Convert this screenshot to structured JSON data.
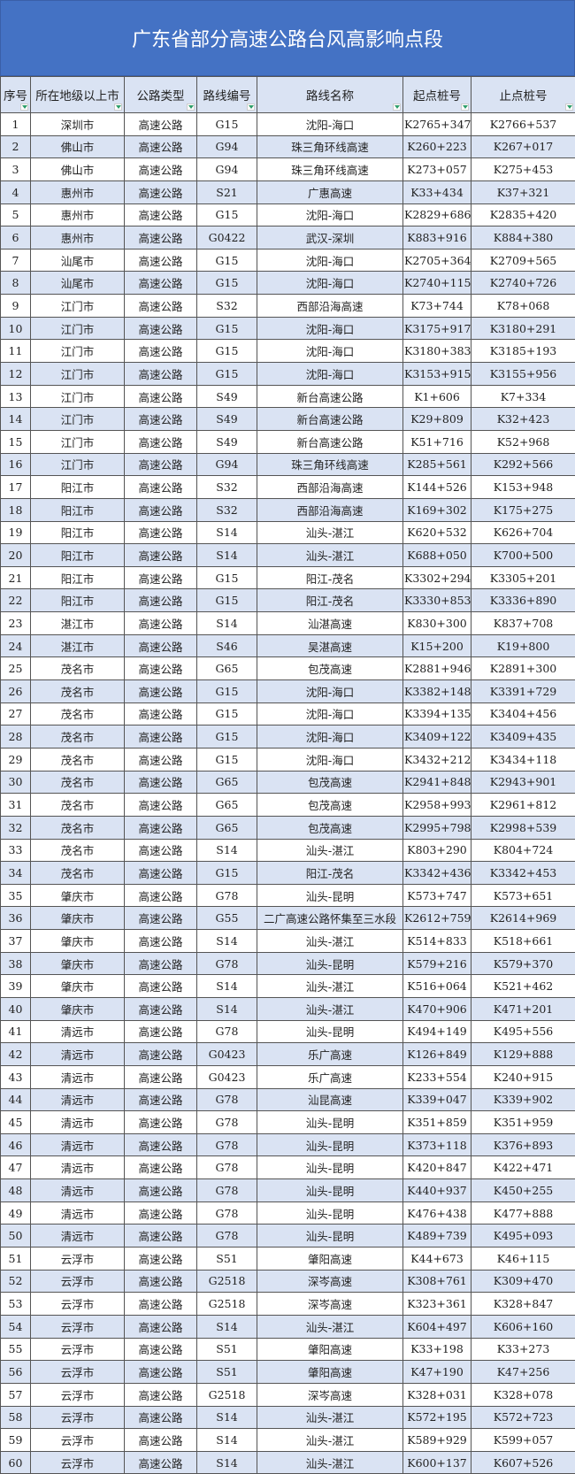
{
  "title": "广东省部分高速公路台风高影响点段",
  "headers": [
    "序号",
    "所在地级以上市",
    "公路类型",
    "路线编号",
    "路线名称",
    "起点桩号",
    "止点桩号"
  ],
  "rows": [
    [
      "1",
      "深圳市",
      "高速公路",
      "G15",
      "沈阳-海口",
      "K2765+347",
      "K2766+537"
    ],
    [
      "2",
      "佛山市",
      "高速公路",
      "G94",
      "珠三角环线高速",
      "K260+223",
      "K267+017"
    ],
    [
      "3",
      "佛山市",
      "高速公路",
      "G94",
      "珠三角环线高速",
      "K273+057",
      "K275+453"
    ],
    [
      "4",
      "惠州市",
      "高速公路",
      "S21",
      "广惠高速",
      "K33+434",
      "K37+321"
    ],
    [
      "5",
      "惠州市",
      "高速公路",
      "G15",
      "沈阳-海口",
      "K2829+686",
      "K2835+420"
    ],
    [
      "6",
      "惠州市",
      "高速公路",
      "G0422",
      "武汉-深圳",
      "K883+916",
      "K884+380"
    ],
    [
      "7",
      "汕尾市",
      "高速公路",
      "G15",
      "沈阳-海口",
      "K2705+364",
      "K2709+565"
    ],
    [
      "8",
      "汕尾市",
      "高速公路",
      "G15",
      "沈阳-海口",
      "K2740+115",
      "K2740+726"
    ],
    [
      "9",
      "江门市",
      "高速公路",
      "S32",
      "西部沿海高速",
      "K73+744",
      "K78+068"
    ],
    [
      "10",
      "江门市",
      "高速公路",
      "G15",
      "沈阳-海口",
      "K3175+917",
      "K3180+291"
    ],
    [
      "11",
      "江门市",
      "高速公路",
      "G15",
      "沈阳-海口",
      "K3180+383",
      "K3185+193"
    ],
    [
      "12",
      "江门市",
      "高速公路",
      "G15",
      "沈阳-海口",
      "K3153+915",
      "K3155+956"
    ],
    [
      "13",
      "江门市",
      "高速公路",
      "S49",
      "新台高速公路",
      "K1+606",
      "K7+334"
    ],
    [
      "14",
      "江门市",
      "高速公路",
      "S49",
      "新台高速公路",
      "K29+809",
      "K32+423"
    ],
    [
      "15",
      "江门市",
      "高速公路",
      "S49",
      "新台高速公路",
      "K51+716",
      "K52+968"
    ],
    [
      "16",
      "江门市",
      "高速公路",
      "G94",
      "珠三角环线高速",
      "K285+561",
      "K292+566"
    ],
    [
      "17",
      "阳江市",
      "高速公路",
      "S32",
      "西部沿海高速",
      "K144+526",
      "K153+948"
    ],
    [
      "18",
      "阳江市",
      "高速公路",
      "S32",
      "西部沿海高速",
      "K169+302",
      "K175+275"
    ],
    [
      "19",
      "阳江市",
      "高速公路",
      "S14",
      "汕头-湛江",
      "K620+532",
      "K626+704"
    ],
    [
      "20",
      "阳江市",
      "高速公路",
      "S14",
      "汕头-湛江",
      "K688+050",
      "K700+500"
    ],
    [
      "21",
      "阳江市",
      "高速公路",
      "G15",
      "阳江-茂名",
      "K3302+294",
      "K3305+201"
    ],
    [
      "22",
      "阳江市",
      "高速公路",
      "G15",
      "阳江-茂名",
      "K3330+853",
      "K3336+890"
    ],
    [
      "23",
      "湛江市",
      "高速公路",
      "S14",
      "汕湛高速",
      "K830+300",
      "K837+708"
    ],
    [
      "24",
      "湛江市",
      "高速公路",
      "S46",
      "吴湛高速",
      "K15+200",
      "K19+800"
    ],
    [
      "25",
      "茂名市",
      "高速公路",
      "G65",
      "包茂高速",
      "K2881+946",
      "K2891+300"
    ],
    [
      "26",
      "茂名市",
      "高速公路",
      "G15",
      "沈阳-海口",
      "K3382+148",
      "K3391+729"
    ],
    [
      "27",
      "茂名市",
      "高速公路",
      "G15",
      "沈阳-海口",
      "K3394+135",
      "K3404+456"
    ],
    [
      "28",
      "茂名市",
      "高速公路",
      "G15",
      "沈阳-海口",
      "K3409+122",
      "K3409+435"
    ],
    [
      "29",
      "茂名市",
      "高速公路",
      "G15",
      "沈阳-海口",
      "K3432+212",
      "K3434+118"
    ],
    [
      "30",
      "茂名市",
      "高速公路",
      "G65",
      "包茂高速",
      "K2941+848",
      "K2943+901"
    ],
    [
      "31",
      "茂名市",
      "高速公路",
      "G65",
      "包茂高速",
      "K2958+993",
      "K2961+812"
    ],
    [
      "32",
      "茂名市",
      "高速公路",
      "G65",
      "包茂高速",
      "K2995+798",
      "K2998+539"
    ],
    [
      "33",
      "茂名市",
      "高速公路",
      "S14",
      "汕头-湛江",
      "K803+290",
      "K804+724"
    ],
    [
      "34",
      "茂名市",
      "高速公路",
      "G15",
      "阳江-茂名",
      "K3342+436",
      "K3342+453"
    ],
    [
      "35",
      "肇庆市",
      "高速公路",
      "G78",
      "汕头-昆明",
      "K573+747",
      "K573+651"
    ],
    [
      "36",
      "肇庆市",
      "高速公路",
      "G55",
      "二广高速公路怀集至三水段",
      "K2612+759",
      "K2614+969"
    ],
    [
      "37",
      "肇庆市",
      "高速公路",
      "S14",
      "汕头-湛江",
      "K514+833",
      "K518+661"
    ],
    [
      "38",
      "肇庆市",
      "高速公路",
      "G78",
      "汕头-昆明",
      "K579+216",
      "K579+370"
    ],
    [
      "39",
      "肇庆市",
      "高速公路",
      "S14",
      "汕头-湛江",
      "K516+064",
      "K521+462"
    ],
    [
      "40",
      "肇庆市",
      "高速公路",
      "S14",
      "汕头-湛江",
      "K470+906",
      "K471+201"
    ],
    [
      "41",
      "清远市",
      "高速公路",
      "G78",
      "汕头-昆明",
      "K494+149",
      "K495+556"
    ],
    [
      "42",
      "清远市",
      "高速公路",
      "G0423",
      "乐广高速",
      "K126+849",
      "K129+888"
    ],
    [
      "43",
      "清远市",
      "高速公路",
      "G0423",
      "乐广高速",
      "K233+554",
      "K240+915"
    ],
    [
      "44",
      "清远市",
      "高速公路",
      "G78",
      "汕昆高速",
      "K339+047",
      "K339+902"
    ],
    [
      "45",
      "清远市",
      "高速公路",
      "G78",
      "汕头-昆明",
      "K351+859",
      "K351+959"
    ],
    [
      "46",
      "清远市",
      "高速公路",
      "G78",
      "汕头-昆明",
      "K373+118",
      "K376+893"
    ],
    [
      "47",
      "清远市",
      "高速公路",
      "G78",
      "汕头-昆明",
      "K420+847",
      "K422+471"
    ],
    [
      "48",
      "清远市",
      "高速公路",
      "G78",
      "汕头-昆明",
      "K440+937",
      "K450+255"
    ],
    [
      "49",
      "清远市",
      "高速公路",
      "G78",
      "汕头-昆明",
      "K476+438",
      "K477+888"
    ],
    [
      "50",
      "清远市",
      "高速公路",
      "G78",
      "汕头-昆明",
      "K489+739",
      "K495+093"
    ],
    [
      "51",
      "云浮市",
      "高速公路",
      "S51",
      "肇阳高速",
      "K44+673",
      "K46+115"
    ],
    [
      "52",
      "云浮市",
      "高速公路",
      "G2518",
      "深岑高速",
      "K308+761",
      "K309+470"
    ],
    [
      "53",
      "云浮市",
      "高速公路",
      "G2518",
      "深岑高速",
      "K323+361",
      "K328+847"
    ],
    [
      "54",
      "云浮市",
      "高速公路",
      "S14",
      "汕头-湛江",
      "K604+497",
      "K606+160"
    ],
    [
      "55",
      "云浮市",
      "高速公路",
      "S51",
      "肇阳高速",
      "K33+198",
      "K33+273"
    ],
    [
      "56",
      "云浮市",
      "高速公路",
      "S51",
      "肇阳高速",
      "K47+190",
      "K47+256"
    ],
    [
      "57",
      "云浮市",
      "高速公路",
      "G2518",
      "深岑高速",
      "K328+031",
      "K328+078"
    ],
    [
      "58",
      "云浮市",
      "高速公路",
      "S14",
      "汕头-湛江",
      "K572+195",
      "K572+723"
    ],
    [
      "59",
      "云浮市",
      "高速公路",
      "S14",
      "汕头-湛江",
      "K589+929",
      "K599+057"
    ],
    [
      "60",
      "云浮市",
      "高速公路",
      "S14",
      "汕头-湛江",
      "K600+137",
      "K607+526"
    ]
  ],
  "colors": {
    "title_bg": "#4472c4",
    "alt_row": "#dae3f3",
    "filter_arrow": "#2e9e6a"
  },
  "icons": {
    "header_filter": "filter-dropdown-icon"
  }
}
